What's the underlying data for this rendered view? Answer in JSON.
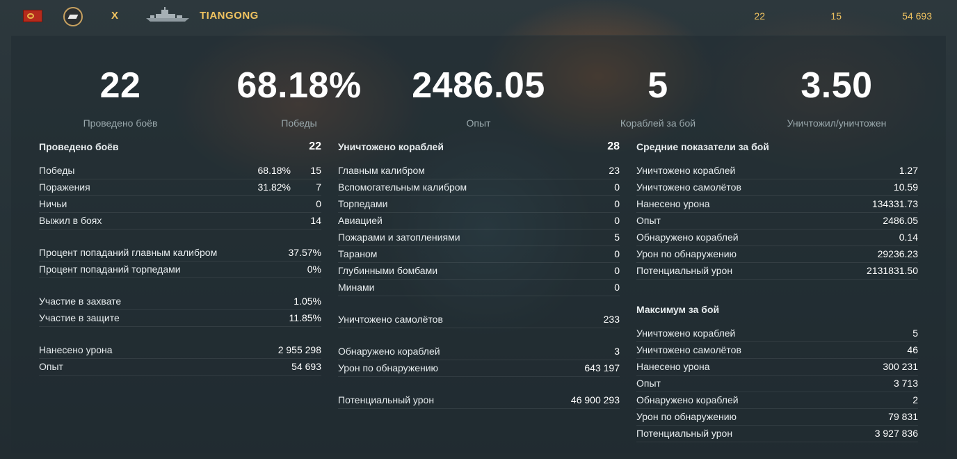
{
  "header": {
    "tier": "X",
    "ship_name": "TIANGONG",
    "battles": "22",
    "wins": "15",
    "experience": "54 693",
    "icons": [
      "flag-icon",
      "rank-icon",
      "ship-icon"
    ]
  },
  "summary": [
    {
      "value": "22",
      "label": "Проведено боёв"
    },
    {
      "value": "68.18%",
      "label": "Победы"
    },
    {
      "value": "2486.05",
      "label": "Опыт"
    },
    {
      "value": "5",
      "label": "Кораблей за бой"
    },
    {
      "value": "3.50",
      "label": "Уничтожил/уничтожен"
    }
  ],
  "col1": {
    "title": "Проведено боёв",
    "title_value": "22",
    "groups": [
      [
        {
          "label": "Победы",
          "pct": "68.18%",
          "value": "15"
        },
        {
          "label": "Поражения",
          "pct": "31.82%",
          "value": "7"
        },
        {
          "label": "Ничьи",
          "value": "0"
        },
        {
          "label": "Выжил в боях",
          "value": "14"
        }
      ],
      [
        {
          "label": "Процент попаданий главным калибром",
          "value": "37.57%"
        },
        {
          "label": "Процент попаданий торпедами",
          "value": "0%"
        }
      ],
      [
        {
          "label": "Участие в захвате",
          "value": "1.05%"
        },
        {
          "label": "Участие в защите",
          "value": "11.85%"
        }
      ],
      [
        {
          "label": "Нанесено урона",
          "value": "2 955 298"
        },
        {
          "label": "Опыт",
          "value": "54 693"
        }
      ]
    ]
  },
  "col2": {
    "title": "Уничтожено кораблей",
    "title_value": "28",
    "groups": [
      [
        {
          "label": "Главным калибром",
          "value": "23"
        },
        {
          "label": "Вспомогательным калибром",
          "value": "0"
        },
        {
          "label": "Торпедами",
          "value": "0"
        },
        {
          "label": "Авиацией",
          "value": "0"
        },
        {
          "label": "Пожарами и затоплениями",
          "value": "5"
        },
        {
          "label": "Тараном",
          "value": "0"
        },
        {
          "label": "Глубинными бомбами",
          "value": "0"
        },
        {
          "label": "Минами",
          "value": "0"
        }
      ],
      [
        {
          "label": "Уничтожено самолётов",
          "value": "233"
        }
      ],
      [
        {
          "label": "Обнаружено кораблей",
          "value": "3"
        },
        {
          "label": "Урон по обнаружению",
          "value": "643 197"
        }
      ],
      [
        {
          "label": "Потенциальный урон",
          "value": "46 900 293"
        }
      ]
    ]
  },
  "col3": {
    "avg_title": "Средние показатели за бой",
    "avg": [
      {
        "label": "Уничтожено кораблей",
        "value": "1.27"
      },
      {
        "label": "Уничтожено самолётов",
        "value": "10.59"
      },
      {
        "label": "Нанесено урона",
        "value": "134331.73"
      },
      {
        "label": "Опыт",
        "value": "2486.05"
      },
      {
        "label": "Обнаружено кораблей",
        "value": "0.14"
      },
      {
        "label": "Урон по обнаружению",
        "value": "29236.23"
      },
      {
        "label": "Потенциальный урон",
        "value": "2131831.50"
      }
    ],
    "max_title": "Максимум за бой",
    "max": [
      {
        "label": "Уничтожено кораблей",
        "value": "5"
      },
      {
        "label": "Уничтожено самолётов",
        "value": "46"
      },
      {
        "label": "Нанесено урона",
        "value": "300 231"
      },
      {
        "label": "Опыт",
        "value": "3 713"
      },
      {
        "label": "Обнаружено кораблей",
        "value": "2"
      },
      {
        "label": "Урон по обнаружению",
        "value": "79 831"
      },
      {
        "label": "Потенциальный урон",
        "value": "3 927 836"
      }
    ]
  }
}
